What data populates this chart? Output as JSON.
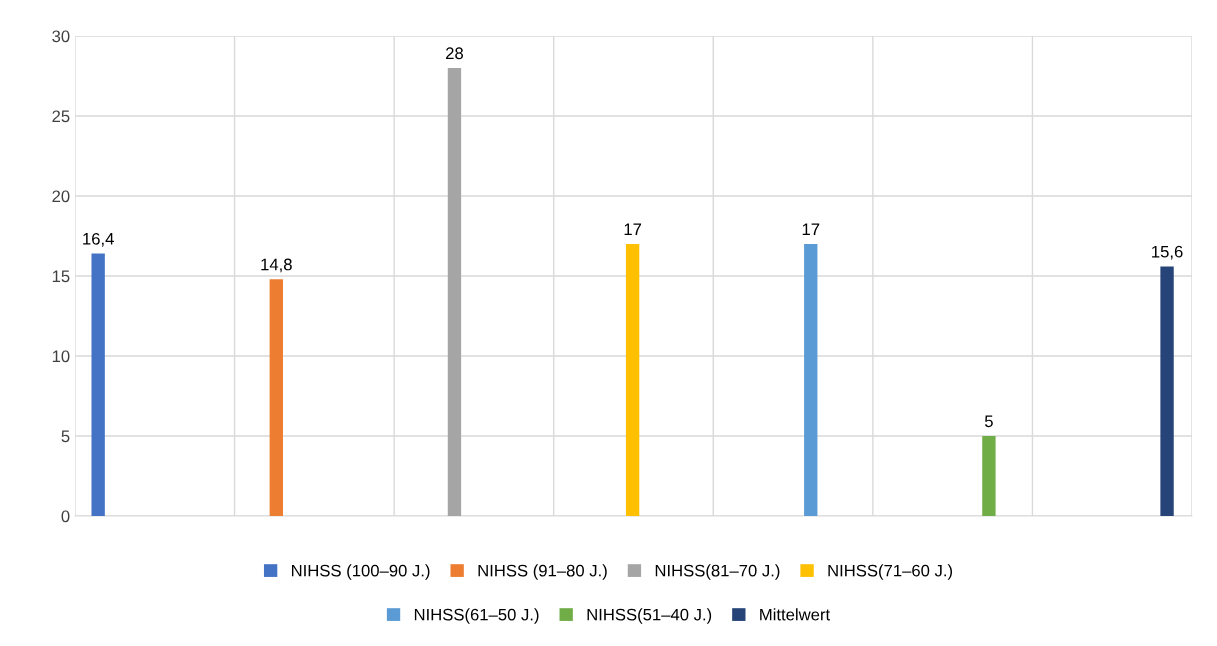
{
  "chart_data": {
    "type": "bar",
    "categories": [
      null
    ],
    "series": [
      {
        "name": "NIHSS (100–90 J.)",
        "color": "#4472c4",
        "values": [
          16.4
        ],
        "value_labels": [
          "16,4"
        ]
      },
      {
        "name": "NIHSS (91–80 J.)",
        "color": "#ed7d31",
        "values": [
          14.8
        ],
        "value_labels": [
          "14,8"
        ]
      },
      {
        "name": "NIHSS(81–70 J.)",
        "color": "#a5a5a5",
        "values": [
          28
        ],
        "value_labels": [
          "28"
        ]
      },
      {
        "name": "NIHSS(71–60 J.)",
        "color": "#ffc000",
        "values": [
          17
        ],
        "value_labels": [
          "17"
        ]
      },
      {
        "name": "NIHSS(61–50 J.)",
        "color": "#5b9bd5",
        "values": [
          17
        ],
        "value_labels": [
          "17"
        ]
      },
      {
        "name": "NIHSS(51–40 J.)",
        "color": "#70ad47",
        "values": [
          5
        ],
        "value_labels": [
          "5"
        ]
      },
      {
        "name": "Mittelwert",
        "color": "#264478",
        "values": [
          15.6
        ],
        "value_labels": [
          "15,6"
        ]
      }
    ],
    "ylim": [
      0,
      30
    ],
    "yticks": [
      0,
      5,
      10,
      15,
      20,
      25,
      30
    ],
    "grid": true,
    "legend": "bottom",
    "tick_labels": "y"
  }
}
